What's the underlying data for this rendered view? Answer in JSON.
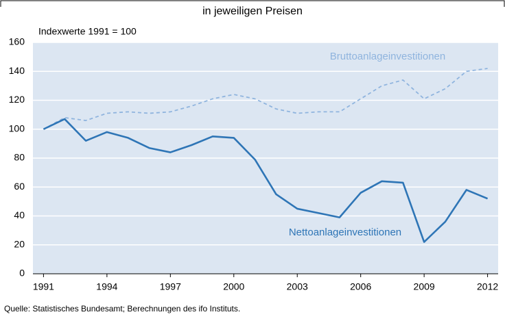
{
  "chart_data": {
    "type": "line",
    "title": "in jeweiligen Preisen",
    "ylabel": "Indexwerte 1991 = 100",
    "source": "Quelle: Statistisches Bundesamt; Berechnungen des ifo Instituts.",
    "x": [
      1991,
      1992,
      1993,
      1994,
      1995,
      1996,
      1997,
      1998,
      1999,
      2000,
      2001,
      2002,
      2003,
      2004,
      2005,
      2006,
      2007,
      2008,
      2009,
      2010,
      2011,
      2012
    ],
    "series": [
      {
        "name": "Bruttoanlageinvestitionen",
        "color": "#8fb4de",
        "style": "dashed",
        "values": [
          100,
          108,
          106,
          111,
          112,
          111,
          112,
          116,
          121,
          124,
          121,
          114,
          111,
          112,
          112,
          121,
          130,
          134,
          121,
          128,
          140,
          142
        ]
      },
      {
        "name": "Nettoanlageinvestitionen",
        "color": "#2e75b6",
        "style": "solid",
        "values": [
          100,
          107,
          92,
          98,
          94,
          87,
          84,
          89,
          95,
          94,
          79,
          55,
          45,
          42,
          39,
          56,
          64,
          63,
          22,
          36,
          58,
          52
        ]
      }
    ],
    "xlim": [
      1990.5,
      2012.5
    ],
    "xticks": [
      1991,
      1994,
      1997,
      2000,
      2003,
      2006,
      2009,
      2012
    ],
    "ylim": [
      0,
      160
    ],
    "yticks": [
      0,
      20,
      40,
      60,
      80,
      100,
      120,
      140,
      160
    ],
    "grid": true
  }
}
